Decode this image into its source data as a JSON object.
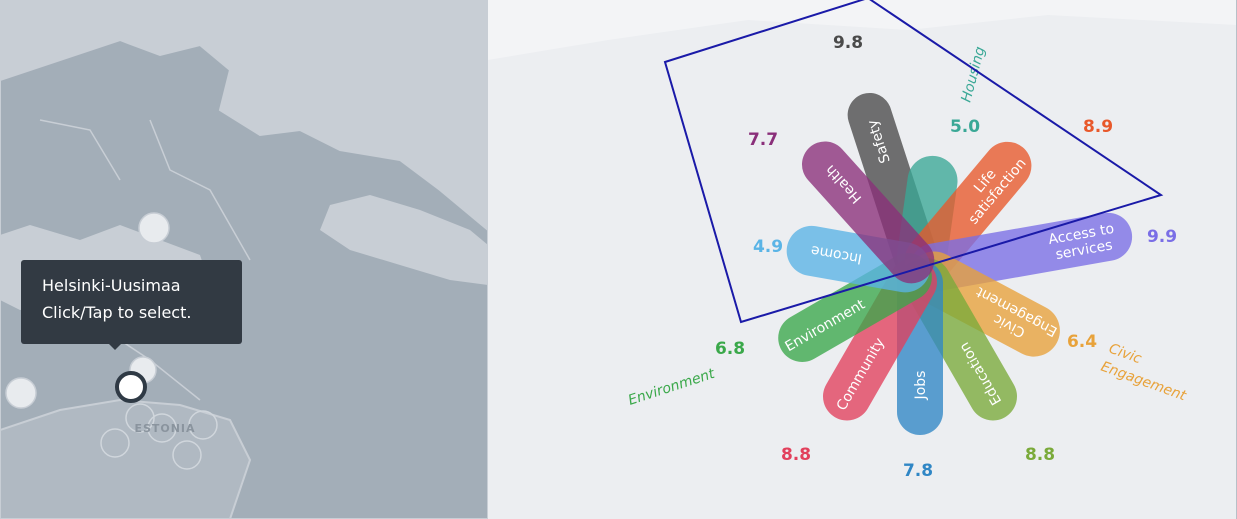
{
  "map": {
    "country_label": "ESTONIA",
    "tooltip": {
      "region": "Helsinki-Uusimaa",
      "hint": "Click/Tap to select."
    }
  },
  "flower": {
    "petals": [
      {
        "key": "safety",
        "label": "Safety",
        "score": "9.8",
        "color": "#4a4a4a"
      },
      {
        "key": "housing",
        "label": "Housing",
        "score": "5.0",
        "color": "#3aa896"
      },
      {
        "key": "life",
        "label_lines": [
          "Life",
          "satisfaction"
        ],
        "score": "8.9",
        "color": "#e8582a"
      },
      {
        "key": "access",
        "label_lines": [
          "Access to",
          "services"
        ],
        "score": "9.9",
        "color": "#7a6ee6"
      },
      {
        "key": "civic",
        "label_lines": [
          "Civic",
          "Engagement"
        ],
        "score": "6.4",
        "color": "#e8a23a"
      },
      {
        "key": "education",
        "label": "Education",
        "score": "8.8",
        "color": "#7aaa3a"
      },
      {
        "key": "jobs",
        "label": "Jobs",
        "score": "7.8",
        "color": "#2f86c5"
      },
      {
        "key": "community",
        "label": "Community",
        "score": "8.8",
        "color": "#e2405c"
      },
      {
        "key": "environment",
        "label": "Environment",
        "score": "6.8",
        "color": "#3aa84a"
      },
      {
        "key": "income",
        "label": "Income",
        "score": "4.9",
        "color": "#5ab4e6"
      },
      {
        "key": "health",
        "label": "Health",
        "score": "7.7",
        "color": "#8a2f7a"
      }
    ]
  },
  "overlay": {
    "color": "#1a1aa8"
  }
}
